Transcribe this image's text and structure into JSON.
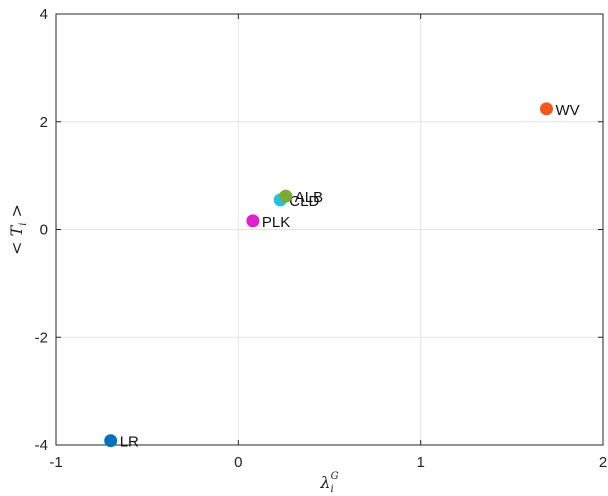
{
  "chart_data": {
    "type": "scatter",
    "title": "",
    "xlabel": {
      "base": "λ",
      "sub": "i",
      "sup": "G"
    },
    "ylabel": {
      "prefix": "< ",
      "base": "T",
      "sub": "i",
      "suffix": " >"
    },
    "xlim": [
      -1,
      2
    ],
    "ylim": [
      -4,
      4
    ],
    "xticks": [
      -1,
      0,
      1,
      2
    ],
    "yticks": [
      -4,
      -2,
      0,
      2,
      4
    ],
    "grid": true,
    "points": [
      {
        "label": "LR",
        "x": -0.7,
        "y": -3.92,
        "color": "#0072BD"
      },
      {
        "label": "PLK",
        "x": 0.08,
        "y": 0.16,
        "color": "#E01FD0"
      },
      {
        "label": "CLD",
        "x": 0.23,
        "y": 0.55,
        "color": "#1EC3EC"
      },
      {
        "label": "ALB",
        "x": 0.26,
        "y": 0.62,
        "color": "#77AC30"
      },
      {
        "label": "WV",
        "x": 1.69,
        "y": 2.24,
        "color": "#F4561B"
      }
    ]
  }
}
